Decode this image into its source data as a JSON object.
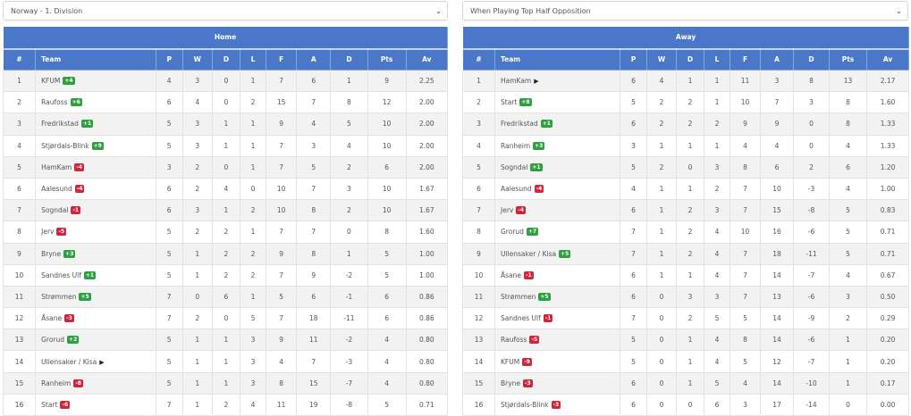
{
  "colors": {
    "header": "#4a77c8",
    "badge_up": "#2ea040",
    "badge_down": "#d0263a",
    "row_stripe": "#f2f2f2"
  },
  "left": {
    "select": {
      "value": "Norway - 1. Division",
      "icon": "chevron-down-icon"
    },
    "title": "Home",
    "columns": [
      "#",
      "Team",
      "P",
      "W",
      "D",
      "L",
      "F",
      "A",
      "D",
      "Pts",
      "Av"
    ],
    "rows": [
      {
        "pos": "1",
        "team": "KFUM",
        "badge": "+4",
        "dir": "up",
        "p": "4",
        "w": "3",
        "d": "0",
        "l": "1",
        "f": "7",
        "a": "6",
        "gd": "1",
        "pts": "9",
        "av": "2.25"
      },
      {
        "pos": "2",
        "team": "Raufoss",
        "badge": "+6",
        "dir": "up",
        "p": "6",
        "w": "4",
        "d": "0",
        "l": "2",
        "f": "15",
        "a": "7",
        "gd": "8",
        "pts": "12",
        "av": "2.00"
      },
      {
        "pos": "3",
        "team": "Fredrikstad",
        "badge": "+1",
        "dir": "up",
        "p": "5",
        "w": "3",
        "d": "1",
        "l": "1",
        "f": "9",
        "a": "4",
        "gd": "5",
        "pts": "10",
        "av": "2.00"
      },
      {
        "pos": "4",
        "team": "Stjørdals-Blink",
        "badge": "+9",
        "dir": "up",
        "p": "5",
        "w": "3",
        "d": "1",
        "l": "1",
        "f": "7",
        "a": "3",
        "gd": "4",
        "pts": "10",
        "av": "2.00"
      },
      {
        "pos": "5",
        "team": "HamKam",
        "badge": "-4",
        "dir": "down",
        "p": "3",
        "w": "2",
        "d": "0",
        "l": "1",
        "f": "7",
        "a": "5",
        "gd": "2",
        "pts": "6",
        "av": "2.00"
      },
      {
        "pos": "6",
        "team": "Aalesund",
        "badge": "-4",
        "dir": "down",
        "p": "6",
        "w": "2",
        "d": "4",
        "l": "0",
        "f": "10",
        "a": "7",
        "gd": "3",
        "pts": "10",
        "av": "1.67"
      },
      {
        "pos": "7",
        "team": "Sogndal",
        "badge": "-1",
        "dir": "down",
        "p": "6",
        "w": "3",
        "d": "1",
        "l": "2",
        "f": "10",
        "a": "8",
        "gd": "2",
        "pts": "10",
        "av": "1.67"
      },
      {
        "pos": "8",
        "team": "Jerv",
        "badge": "-5",
        "dir": "down",
        "p": "5",
        "w": "2",
        "d": "2",
        "l": "1",
        "f": "7",
        "a": "7",
        "gd": "0",
        "pts": "8",
        "av": "1.60"
      },
      {
        "pos": "9",
        "team": "Bryne",
        "badge": "+3",
        "dir": "up",
        "p": "5",
        "w": "1",
        "d": "2",
        "l": "2",
        "f": "9",
        "a": "8",
        "gd": "1",
        "pts": "5",
        "av": "1.00"
      },
      {
        "pos": "10",
        "team": "Sandnes Ulf",
        "badge": "+1",
        "dir": "up",
        "p": "5",
        "w": "1",
        "d": "2",
        "l": "2",
        "f": "7",
        "a": "9",
        "gd": "-2",
        "pts": "5",
        "av": "1.00"
      },
      {
        "pos": "11",
        "team": "Strømmen",
        "badge": "+5",
        "dir": "up",
        "p": "7",
        "w": "0",
        "d": "6",
        "l": "1",
        "f": "5",
        "a": "6",
        "gd": "-1",
        "pts": "6",
        "av": "0.86"
      },
      {
        "pos": "12",
        "team": "Åsane",
        "badge": "-3",
        "dir": "down",
        "p": "7",
        "w": "2",
        "d": "0",
        "l": "5",
        "f": "7",
        "a": "18",
        "gd": "-11",
        "pts": "6",
        "av": "0.86"
      },
      {
        "pos": "13",
        "team": "Grorud",
        "badge": "+2",
        "dir": "up",
        "p": "5",
        "w": "1",
        "d": "1",
        "l": "3",
        "f": "9",
        "a": "11",
        "gd": "-2",
        "pts": "4",
        "av": "0.80"
      },
      {
        "pos": "14",
        "team": "Ullensaker / Kisa",
        "badge": "",
        "dir": "play",
        "p": "5",
        "w": "1",
        "d": "1",
        "l": "3",
        "f": "4",
        "a": "7",
        "gd": "-3",
        "pts": "4",
        "av": "0.80"
      },
      {
        "pos": "15",
        "team": "Ranheim",
        "badge": "-8",
        "dir": "down",
        "p": "5",
        "w": "1",
        "d": "1",
        "l": "3",
        "f": "8",
        "a": "15",
        "gd": "-7",
        "pts": "4",
        "av": "0.80"
      },
      {
        "pos": "16",
        "team": "Start",
        "badge": "-6",
        "dir": "down",
        "p": "7",
        "w": "1",
        "d": "2",
        "l": "4",
        "f": "11",
        "a": "19",
        "gd": "-8",
        "pts": "5",
        "av": "0.71"
      }
    ]
  },
  "right": {
    "select": {
      "value": "When Playing Top Half Opposition",
      "icon": "chevron-down-icon"
    },
    "title": "Away",
    "columns": [
      "#",
      "Team",
      "P",
      "W",
      "D",
      "L",
      "F",
      "A",
      "D",
      "Pts",
      "Av"
    ],
    "rows": [
      {
        "pos": "1",
        "team": "HamKam",
        "badge": "",
        "dir": "play",
        "p": "6",
        "w": "4",
        "d": "1",
        "l": "1",
        "f": "11",
        "a": "3",
        "gd": "8",
        "pts": "13",
        "av": "2.17"
      },
      {
        "pos": "2",
        "team": "Start",
        "badge": "+8",
        "dir": "up",
        "p": "5",
        "w": "2",
        "d": "2",
        "l": "1",
        "f": "10",
        "a": "7",
        "gd": "3",
        "pts": "8",
        "av": "1.60"
      },
      {
        "pos": "3",
        "team": "Fredrikstad",
        "badge": "+1",
        "dir": "up",
        "p": "6",
        "w": "2",
        "d": "2",
        "l": "2",
        "f": "9",
        "a": "9",
        "gd": "0",
        "pts": "8",
        "av": "1.33"
      },
      {
        "pos": "4",
        "team": "Ranheim",
        "badge": "+3",
        "dir": "up",
        "p": "3",
        "w": "1",
        "d": "1",
        "l": "1",
        "f": "4",
        "a": "4",
        "gd": "0",
        "pts": "4",
        "av": "1.33"
      },
      {
        "pos": "5",
        "team": "Sogndal",
        "badge": "+1",
        "dir": "up",
        "p": "5",
        "w": "2",
        "d": "0",
        "l": "3",
        "f": "8",
        "a": "6",
        "gd": "2",
        "pts": "6",
        "av": "1.20"
      },
      {
        "pos": "6",
        "team": "Aalesund",
        "badge": "-4",
        "dir": "down",
        "p": "4",
        "w": "1",
        "d": "1",
        "l": "2",
        "f": "7",
        "a": "10",
        "gd": "-3",
        "pts": "4",
        "av": "1.00"
      },
      {
        "pos": "7",
        "team": "Jerv",
        "badge": "-4",
        "dir": "down",
        "p": "6",
        "w": "1",
        "d": "2",
        "l": "3",
        "f": "7",
        "a": "15",
        "gd": "-8",
        "pts": "5",
        "av": "0.83"
      },
      {
        "pos": "8",
        "team": "Grorud",
        "badge": "+7",
        "dir": "up",
        "p": "7",
        "w": "1",
        "d": "2",
        "l": "4",
        "f": "10",
        "a": "16",
        "gd": "-6",
        "pts": "5",
        "av": "0.71"
      },
      {
        "pos": "9",
        "team": "Ullensaker / Kisa",
        "badge": "+5",
        "dir": "up",
        "p": "7",
        "w": "1",
        "d": "2",
        "l": "4",
        "f": "7",
        "a": "18",
        "gd": "-11",
        "pts": "5",
        "av": "0.71"
      },
      {
        "pos": "10",
        "team": "Åsane",
        "badge": "-1",
        "dir": "down",
        "p": "6",
        "w": "1",
        "d": "1",
        "l": "4",
        "f": "7",
        "a": "14",
        "gd": "-7",
        "pts": "4",
        "av": "0.67"
      },
      {
        "pos": "11",
        "team": "Strømmen",
        "badge": "+5",
        "dir": "up",
        "p": "6",
        "w": "0",
        "d": "3",
        "l": "3",
        "f": "7",
        "a": "13",
        "gd": "-6",
        "pts": "3",
        "av": "0.50"
      },
      {
        "pos": "12",
        "team": "Sandnes Ulf",
        "badge": "-1",
        "dir": "down",
        "p": "7",
        "w": "0",
        "d": "2",
        "l": "5",
        "f": "5",
        "a": "14",
        "gd": "-9",
        "pts": "2",
        "av": "0.29"
      },
      {
        "pos": "13",
        "team": "Raufoss",
        "badge": "-5",
        "dir": "down",
        "p": "5",
        "w": "0",
        "d": "1",
        "l": "4",
        "f": "8",
        "a": "14",
        "gd": "-6",
        "pts": "1",
        "av": "0.20"
      },
      {
        "pos": "14",
        "team": "KFUM",
        "badge": "-9",
        "dir": "down",
        "p": "5",
        "w": "0",
        "d": "1",
        "l": "4",
        "f": "5",
        "a": "12",
        "gd": "-7",
        "pts": "1",
        "av": "0.20"
      },
      {
        "pos": "15",
        "team": "Bryne",
        "badge": "-3",
        "dir": "down",
        "p": "6",
        "w": "0",
        "d": "1",
        "l": "5",
        "f": "4",
        "a": "14",
        "gd": "-10",
        "pts": "1",
        "av": "0.17"
      },
      {
        "pos": "16",
        "team": "Stjørdals-Blink",
        "badge": "-3",
        "dir": "down",
        "p": "6",
        "w": "0",
        "d": "0",
        "l": "6",
        "f": "3",
        "a": "17",
        "gd": "-14",
        "pts": "0",
        "av": "0.00"
      }
    ]
  }
}
